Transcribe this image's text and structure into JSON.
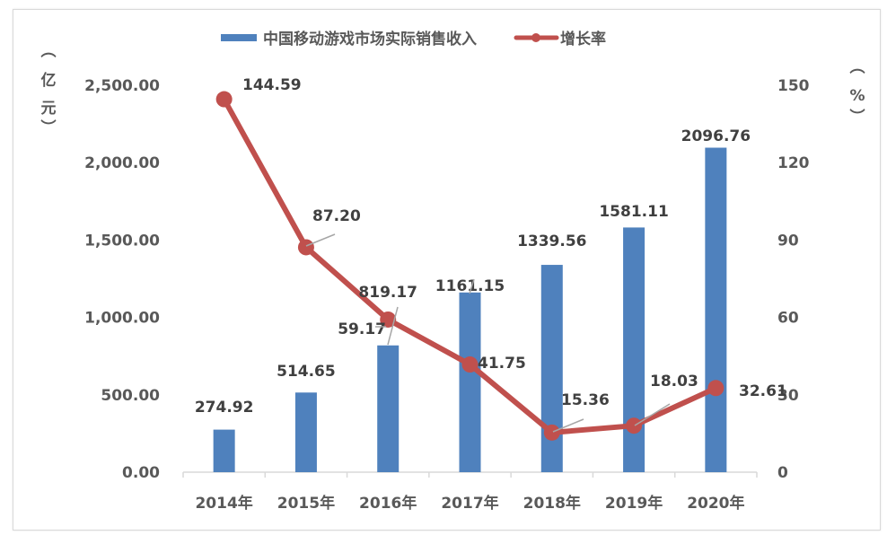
{
  "chart_data": {
    "type": "bar+line",
    "title": "",
    "categories": [
      "2014年",
      "2015年",
      "2016年",
      "2017年",
      "2018年",
      "2019年",
      "2020年"
    ],
    "series": [
      {
        "name": "中国移动游戏市场实际销售收入",
        "type": "bar",
        "axis": "left",
        "color": "#4f81bd",
        "values": [
          274.92,
          514.65,
          819.17,
          1161.15,
          1339.56,
          1581.11,
          2096.76
        ],
        "labels": [
          "274.92",
          "514.65",
          "819.17",
          "1161.15",
          "1339.56",
          "1581.11",
          "2096.76"
        ]
      },
      {
        "name": "增长率",
        "type": "line",
        "axis": "right",
        "color": "#c0504d",
        "values": [
          144.59,
          87.2,
          59.17,
          41.75,
          15.36,
          18.03,
          32.61
        ],
        "labels": [
          "144.59",
          "87.20",
          "59.17",
          "41.75",
          "15.36",
          "18.03",
          "32.61"
        ]
      }
    ],
    "left_axis": {
      "label": "（亿元）",
      "label_chars": [
        "︵",
        "亿",
        "元",
        "︶"
      ],
      "ticks": [
        "0.00",
        "500.00",
        "1,000.00",
        "1,500.00",
        "2,000.00",
        "2,500.00"
      ],
      "tick_values": [
        0,
        500,
        1000,
        1500,
        2000,
        2500
      ],
      "ylim": [
        0,
        2500
      ]
    },
    "right_axis": {
      "label": "（%）",
      "label_chars": [
        "︵",
        "%",
        "︶"
      ],
      "ticks": [
        "0",
        "30",
        "60",
        "90",
        "120",
        "150"
      ],
      "tick_values": [
        0,
        30,
        60,
        90,
        120,
        150
      ],
      "ylim": [
        0,
        150
      ]
    },
    "grid": false,
    "legend_position": "top"
  },
  "legend": {
    "bar_label": "中国移动游戏市场实际销售收入",
    "line_label": "增长率"
  }
}
